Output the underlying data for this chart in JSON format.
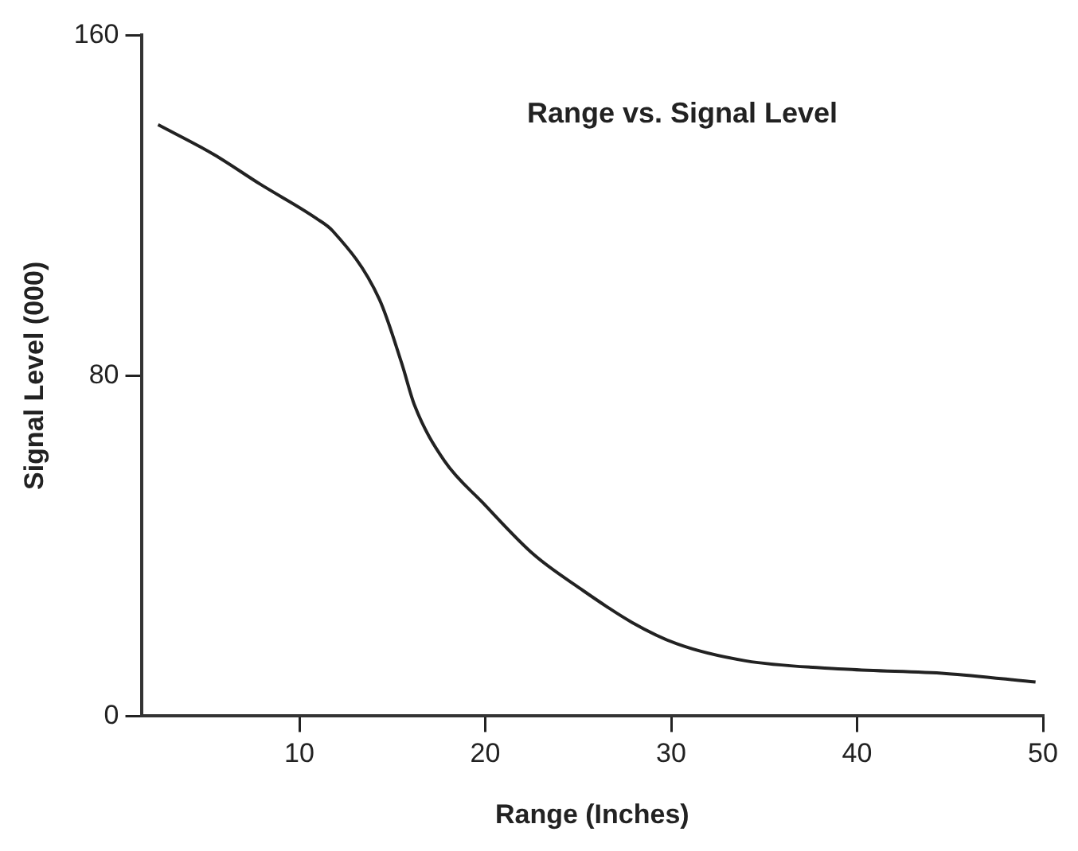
{
  "chart_data": {
    "type": "line",
    "title": "Range vs. Signal Level",
    "xlabel": "Range (Inches)",
    "ylabel": "Signal Level (000)",
    "xlim": [
      1.5,
      50
    ],
    "ylim": [
      0,
      160
    ],
    "xticks": [
      10,
      20,
      30,
      40,
      50
    ],
    "yticks": [
      0,
      80,
      160
    ],
    "grid": false,
    "legend": false,
    "marker": "none",
    "line_style": "solid",
    "series": [
      {
        "color": "#222222",
        "x": [
          2.4,
          5.4,
          7.9,
          10.9,
          11.8,
          14.3,
          15.5,
          16.2,
          17.8,
          19.9,
          22.6,
          25.1,
          27.9,
          30.3,
          34,
          39.5,
          44.8,
          49.6
        ],
        "values": [
          139,
          132,
          125,
          117,
          114,
          98,
          83,
          73,
          60,
          50,
          38,
          30,
          22,
          17,
          13,
          11,
          10,
          8
        ]
      }
    ]
  }
}
